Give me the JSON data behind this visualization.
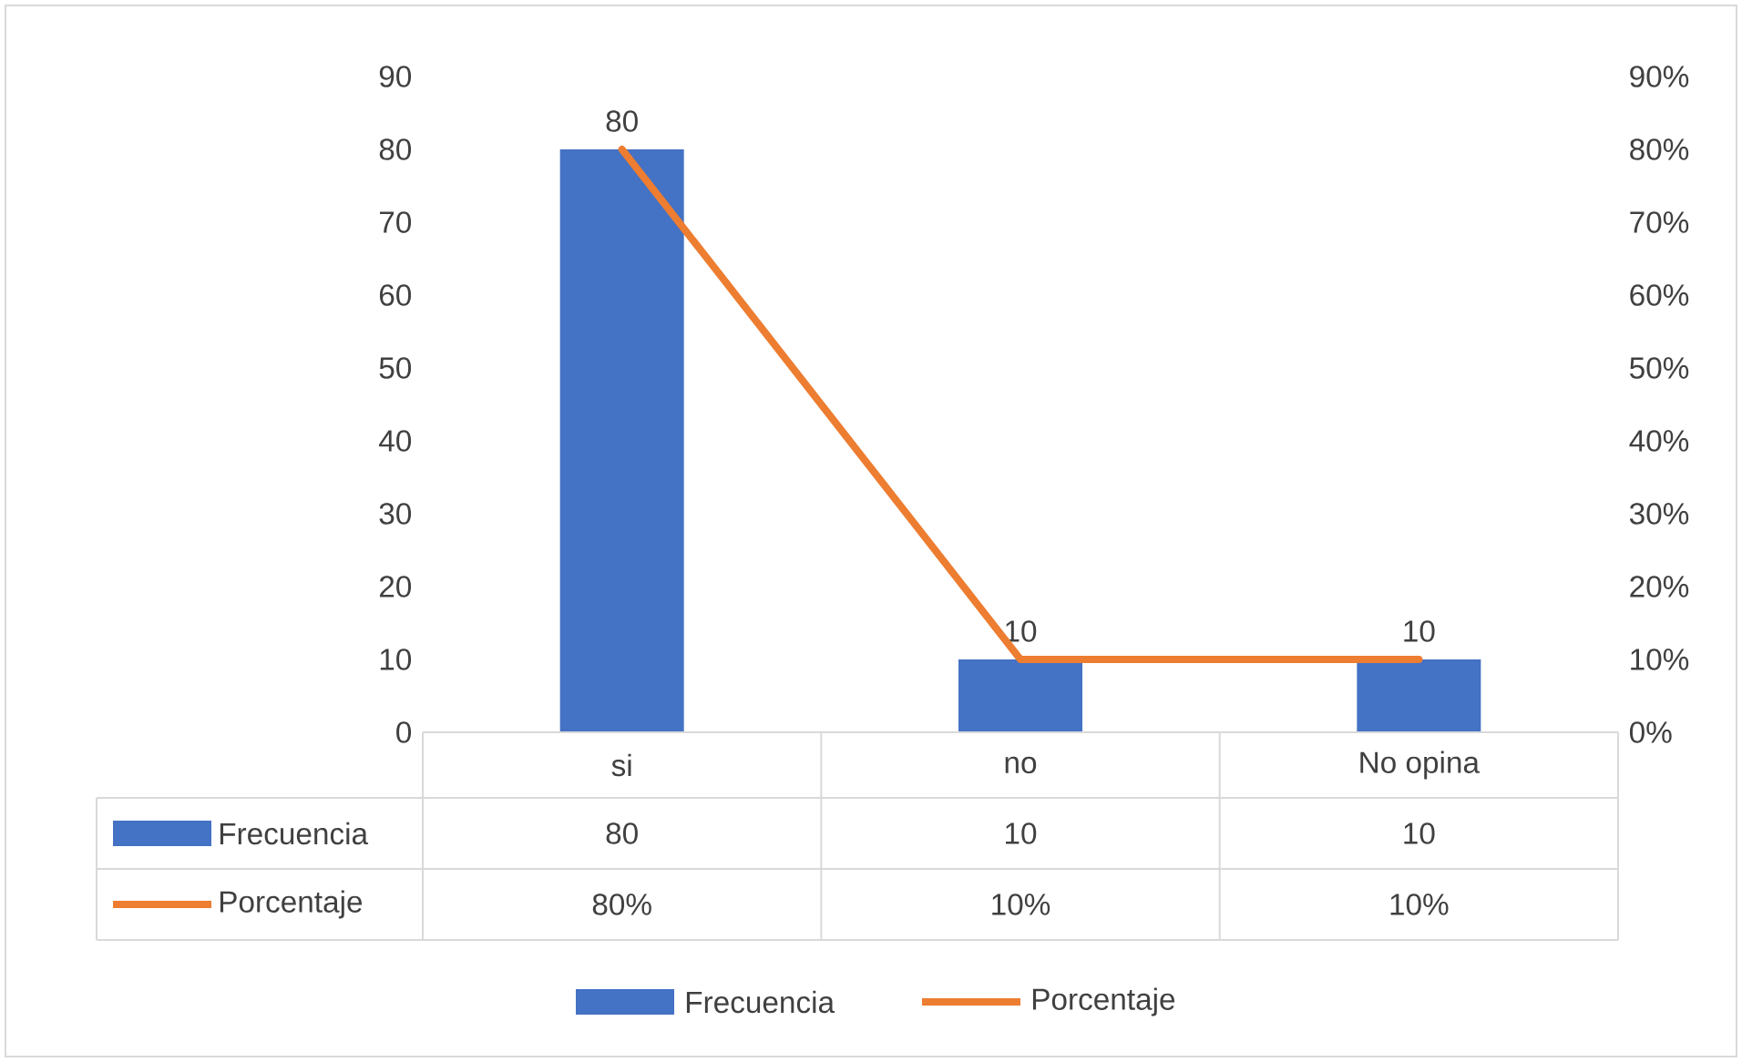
{
  "chart_data": {
    "type": "bar",
    "categories": [
      "si",
      "no",
      "No opina"
    ],
    "series": [
      {
        "name": "Frecuencia",
        "color": "#4472c4",
        "values": [
          80,
          10,
          10
        ],
        "value_labels": [
          "80",
          "10",
          "10"
        ]
      },
      {
        "name": "Porcentaje",
        "type": "line",
        "axis": "y2",
        "color": "#ed7d31",
        "values": [
          80,
          10,
          10
        ],
        "value_labels": [
          "80%",
          "10%",
          "10%"
        ]
      }
    ],
    "ylim": [
      0,
      90
    ],
    "yticks": [
      0,
      10,
      20,
      30,
      40,
      50,
      60,
      70,
      80,
      90
    ],
    "y2lim": [
      0,
      90
    ],
    "y2ticks": [
      {
        "value": 0,
        "label": "0%"
      },
      {
        "value": 10,
        "label": "10%"
      },
      {
        "value": 20,
        "label": "20%"
      },
      {
        "value": 30,
        "label": "30%"
      },
      {
        "value": 40,
        "label": "40%"
      },
      {
        "value": 50,
        "label": "50%"
      },
      {
        "value": 60,
        "label": "60%"
      },
      {
        "value": 70,
        "label": "70%"
      },
      {
        "value": 80,
        "label": "80%"
      },
      {
        "value": 90,
        "label": "90%"
      }
    ],
    "grid": false,
    "legend": "bottom"
  }
}
